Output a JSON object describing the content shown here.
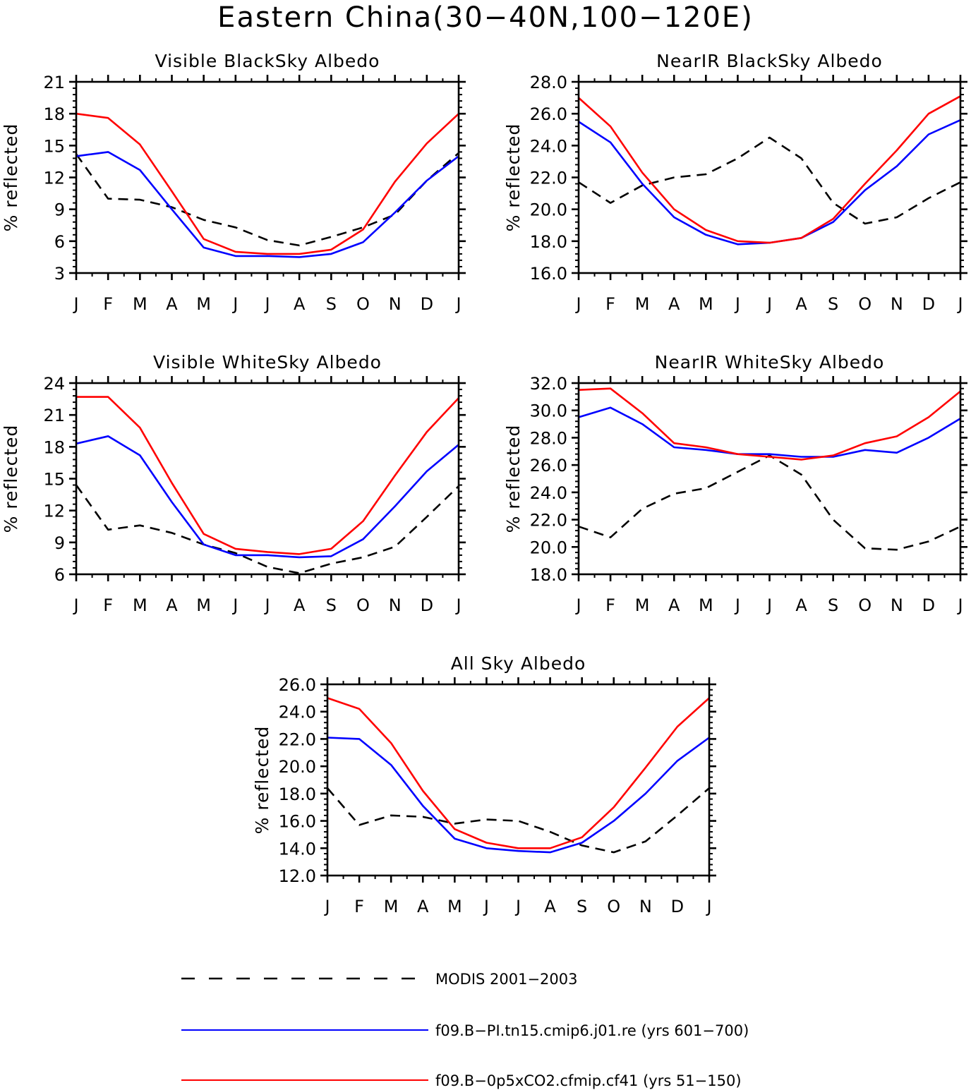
{
  "figure": {
    "title": "Eastern China(30−40N,100−120E)"
  },
  "legend": {
    "entries": [
      {
        "label": "MODIS 2001−2003",
        "color": "#000000",
        "dash": "dashed"
      },
      {
        "label": "f09.B−PI.tn15.cmip6.j01.re (yrs 601−700)",
        "color": "#0000ff",
        "dash": "solid"
      },
      {
        "label": "f09.B−0p5xCO2.cfmip.cf41 (yrs 51−150)",
        "color": "#ff0000",
        "dash": "solid"
      }
    ]
  },
  "chart_data": [
    {
      "type": "line",
      "title": "Visible BlackSky Albedo",
      "ylabel": "% reflected",
      "xlabel": "",
      "categories": [
        "J",
        "F",
        "M",
        "A",
        "M",
        "J",
        "J",
        "A",
        "S",
        "O",
        "N",
        "D",
        "J"
      ],
      "ylim": [
        3,
        21
      ],
      "yticks": [
        "3",
        "6",
        "9",
        "12",
        "15",
        "18",
        "21"
      ],
      "series": [
        {
          "name": "MODIS 2001−2003",
          "color": "#000000",
          "dash": "dashed",
          "values": [
            14.2,
            10.0,
            9.9,
            9.2,
            8.0,
            7.3,
            6.1,
            5.6,
            6.4,
            7.3,
            8.5,
            11.7,
            14.3
          ]
        },
        {
          "name": "f09.B−PI.tn15.cmip6.j01.re (yrs 601−700)",
          "color": "#0000ff",
          "dash": "solid",
          "values": [
            14.0,
            14.4,
            12.7,
            9.0,
            5.4,
            4.6,
            4.6,
            4.5,
            4.8,
            5.9,
            8.7,
            11.7,
            14.0
          ]
        },
        {
          "name": "f09.B−0p5xCO2.cfmip.cf41 (yrs 51−150)",
          "color": "#ff0000",
          "dash": "solid",
          "values": [
            18.0,
            17.6,
            15.1,
            10.7,
            6.2,
            5.0,
            4.8,
            4.8,
            5.2,
            7.1,
            11.6,
            15.2,
            18.0
          ]
        }
      ]
    },
    {
      "type": "line",
      "title": "NearIR BlackSky Albedo",
      "ylabel": "% reflected",
      "xlabel": "",
      "categories": [
        "J",
        "F",
        "M",
        "A",
        "M",
        "J",
        "J",
        "A",
        "S",
        "O",
        "N",
        "D",
        "J"
      ],
      "ylim": [
        16,
        28
      ],
      "yticks": [
        "16.0",
        "18.0",
        "20.0",
        "22.0",
        "24.0",
        "26.0",
        "28.0"
      ],
      "series": [
        {
          "name": "MODIS 2001−2003",
          "color": "#000000",
          "dash": "dashed",
          "values": [
            21.7,
            20.4,
            21.5,
            22.0,
            22.2,
            23.2,
            24.5,
            23.2,
            20.4,
            19.1,
            19.5,
            20.7,
            21.7
          ]
        },
        {
          "name": "f09.B−PI.tn15.cmip6.j01.re (yrs 601−700)",
          "color": "#0000ff",
          "dash": "solid",
          "values": [
            25.5,
            24.2,
            21.6,
            19.5,
            18.4,
            17.8,
            17.9,
            18.2,
            19.2,
            21.2,
            22.7,
            24.7,
            25.6
          ]
        },
        {
          "name": "f09.B−0p5xCO2.cfmip.cf41 (yrs 51−150)",
          "color": "#ff0000",
          "dash": "solid",
          "values": [
            27.0,
            25.2,
            22.3,
            20.0,
            18.7,
            18.0,
            17.9,
            18.2,
            19.4,
            21.6,
            23.7,
            26.0,
            27.1
          ]
        }
      ]
    },
    {
      "type": "line",
      "title": "Visible WhiteSky Albedo",
      "ylabel": "% reflected",
      "xlabel": "",
      "categories": [
        "J",
        "F",
        "M",
        "A",
        "M",
        "J",
        "J",
        "A",
        "S",
        "O",
        "N",
        "D",
        "J"
      ],
      "ylim": [
        6,
        24
      ],
      "yticks": [
        "6",
        "9",
        "12",
        "15",
        "18",
        "21",
        "24"
      ],
      "series": [
        {
          "name": "MODIS 2001−2003",
          "color": "#000000",
          "dash": "dashed",
          "values": [
            14.4,
            10.2,
            10.6,
            9.9,
            8.8,
            8.0,
            6.7,
            6.1,
            7.0,
            7.6,
            8.6,
            11.4,
            14.3
          ]
        },
        {
          "name": "f09.B−PI.tn15.cmip6.j01.re (yrs 601−700)",
          "color": "#0000ff",
          "dash": "solid",
          "values": [
            18.3,
            19.0,
            17.2,
            12.8,
            8.8,
            7.8,
            7.8,
            7.6,
            7.7,
            9.3,
            12.4,
            15.7,
            18.2
          ]
        },
        {
          "name": "f09.B−0p5xCO2.cfmip.cf41 (yrs 51−150)",
          "color": "#ff0000",
          "dash": "solid",
          "values": [
            22.7,
            22.7,
            19.8,
            14.6,
            9.8,
            8.4,
            8.1,
            7.9,
            8.4,
            11.0,
            15.3,
            19.4,
            22.6
          ]
        }
      ]
    },
    {
      "type": "line",
      "title": "NearIR WhiteSky Albedo",
      "ylabel": "% reflected",
      "xlabel": "",
      "categories": [
        "J",
        "F",
        "M",
        "A",
        "M",
        "J",
        "J",
        "A",
        "S",
        "O",
        "N",
        "D",
        "J"
      ],
      "ylim": [
        18,
        32
      ],
      "yticks": [
        "18.0",
        "20.0",
        "22.0",
        "24.0",
        "26.0",
        "28.0",
        "30.0",
        "32.0"
      ],
      "series": [
        {
          "name": "MODIS 2001−2003",
          "color": "#000000",
          "dash": "dashed",
          "values": [
            21.5,
            20.7,
            22.8,
            23.9,
            24.3,
            25.5,
            26.7,
            25.3,
            22.0,
            19.9,
            19.8,
            20.4,
            21.5
          ]
        },
        {
          "name": "f09.B−PI.tn15.cmip6.j01.re (yrs 601−700)",
          "color": "#0000ff",
          "dash": "solid",
          "values": [
            29.5,
            30.2,
            29.0,
            27.3,
            27.1,
            26.8,
            26.8,
            26.6,
            26.6,
            27.1,
            26.9,
            28.0,
            29.4
          ]
        },
        {
          "name": "f09.B−0p5xCO2.cfmip.cf41 (yrs 51−150)",
          "color": "#ff0000",
          "dash": "solid",
          "values": [
            31.5,
            31.6,
            29.8,
            27.6,
            27.3,
            26.8,
            26.6,
            26.4,
            26.7,
            27.6,
            28.1,
            29.5,
            31.4
          ]
        }
      ]
    },
    {
      "type": "line",
      "title": "All Sky Albedo",
      "ylabel": "% reflected",
      "xlabel": "",
      "categories": [
        "J",
        "F",
        "M",
        "A",
        "M",
        "J",
        "J",
        "A",
        "S",
        "O",
        "N",
        "D",
        "J"
      ],
      "ylim": [
        12,
        26
      ],
      "yticks": [
        "12.0",
        "14.0",
        "16.0",
        "18.0",
        "20.0",
        "22.0",
        "24.0",
        "26.0"
      ],
      "series": [
        {
          "name": "MODIS 2001−2003",
          "color": "#000000",
          "dash": "dashed",
          "values": [
            18.4,
            15.7,
            16.4,
            16.3,
            15.8,
            16.1,
            16.0,
            15.2,
            14.2,
            13.7,
            14.5,
            16.4,
            18.4
          ]
        },
        {
          "name": "f09.B−PI.tn15.cmip6.j01.re (yrs 601−700)",
          "color": "#0000ff",
          "dash": "solid",
          "values": [
            22.1,
            22.0,
            20.1,
            17.1,
            14.7,
            14.0,
            13.8,
            13.7,
            14.4,
            16.0,
            18.0,
            20.4,
            22.1
          ]
        },
        {
          "name": "f09.B−0p5xCO2.cfmip.cf41 (yrs 51−150)",
          "color": "#ff0000",
          "dash": "solid",
          "values": [
            25.0,
            24.2,
            21.7,
            18.2,
            15.4,
            14.4,
            14.0,
            14.0,
            14.8,
            17.0,
            19.9,
            22.9,
            25.0
          ]
        }
      ]
    }
  ]
}
